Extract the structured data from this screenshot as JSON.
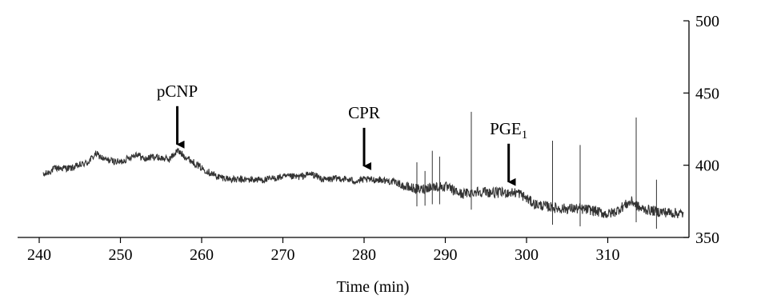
{
  "chart_data": {
    "type": "line",
    "title": "",
    "xlabel": "Time (min)",
    "ylabel": "",
    "xlim": [
      237,
      320
    ],
    "ylim": [
      350,
      500
    ],
    "x_ticks": [
      240,
      250,
      260,
      270,
      280,
      290,
      300,
      310
    ],
    "y_ticks": [
      350,
      400,
      450,
      500
    ],
    "x_tick_labels": [
      "240",
      "250",
      "260",
      "270",
      "280",
      "290",
      "300",
      "310"
    ],
    "y_tick_labels": [
      "350",
      "400",
      "450",
      "500"
    ],
    "y_axis_position": "right",
    "grid": false,
    "legend": "none",
    "line_color": "#333333",
    "series": [
      {
        "x": [
          240.5,
          242,
          244,
          246,
          247,
          248,
          250,
          252,
          253,
          254,
          256,
          257,
          258,
          259,
          260,
          261,
          262,
          264,
          266,
          268,
          270,
          272,
          273.5,
          275,
          277,
          279,
          280,
          282,
          284,
          285,
          286,
          287,
          288,
          290,
          292,
          294,
          296,
          298,
          299,
          300,
          301,
          302,
          304,
          306,
          308,
          310,
          311,
          312,
          313,
          314,
          316,
          318,
          320
        ],
        "y": [
          393,
          398,
          398,
          402,
          408,
          404,
          402,
          408,
          404,
          406,
          404,
          410,
          406,
          402,
          398,
          395,
          392,
          390,
          390,
          390,
          392,
          392,
          394,
          390,
          391,
          389,
          390,
          390,
          388,
          385,
          384,
          383,
          385,
          385,
          380,
          382,
          381,
          381,
          381,
          377,
          373,
          372,
          370,
          370,
          369,
          366,
          368,
          372,
          375,
          370,
          368,
          367,
          366
        ]
      }
    ],
    "annotations": [
      {
        "label": "pCNP",
        "x": 257,
        "y": 411
      },
      {
        "label": "CPR",
        "x": 280,
        "y": 396
      },
      {
        "label": "PGE",
        "subscript": "1",
        "x": 297.8,
        "y": 385
      }
    ]
  }
}
